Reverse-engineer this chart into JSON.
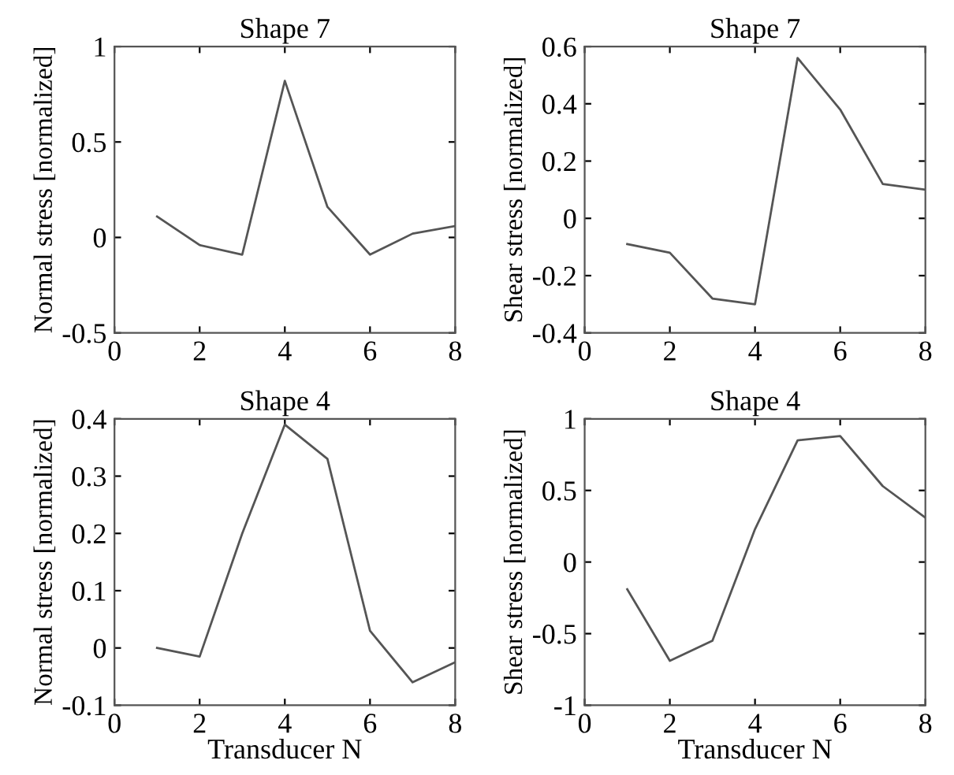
{
  "chart_data": [
    {
      "type": "line",
      "title": "Shape 7",
      "ylabel": "Normal stress [normalized]",
      "x": [
        1,
        2,
        3,
        4,
        5,
        6,
        7,
        8
      ],
      "values": [
        0.11,
        -0.04,
        -0.09,
        0.82,
        0.16,
        -0.09,
        0.02,
        0.06
      ],
      "color": "#555555",
      "xlim": [
        0,
        8
      ],
      "xticks": [
        0,
        2,
        4,
        6,
        8
      ],
      "ylim": [
        -0.5,
        1
      ],
      "yticks": [
        -0.5,
        0,
        0.5,
        1
      ],
      "grid": false
    },
    {
      "type": "line",
      "title": "Shape 7",
      "ylabel": "Shear stress [normalized]",
      "x": [
        1,
        2,
        3,
        4,
        5,
        6,
        7,
        8
      ],
      "values": [
        -0.09,
        -0.12,
        -0.28,
        -0.3,
        0.56,
        0.38,
        0.12,
        0.1
      ],
      "color": "#555555",
      "xlim": [
        0,
        8
      ],
      "xticks": [
        0,
        2,
        4,
        6,
        8
      ],
      "ylim": [
        -0.4,
        0.6
      ],
      "yticks": [
        -0.4,
        -0.2,
        0,
        0.2,
        0.4,
        0.6
      ],
      "grid": false
    },
    {
      "type": "line",
      "title": "Shape 4",
      "xlabel": "Transducer N",
      "ylabel": "Normal stress [normalized]",
      "x": [
        1,
        2,
        3,
        4,
        5,
        6,
        7,
        8
      ],
      "values": [
        0.0,
        -0.015,
        0.2,
        0.39,
        0.33,
        0.03,
        -0.06,
        -0.025
      ],
      "color": "#555555",
      "xlim": [
        0,
        8
      ],
      "xticks": [
        0,
        2,
        4,
        6,
        8
      ],
      "ylim": [
        -0.1,
        0.4
      ],
      "yticks": [
        -0.1,
        0,
        0.1,
        0.2,
        0.3,
        0.4
      ],
      "grid": false
    },
    {
      "type": "line",
      "title": "Shape 4",
      "xlabel": "Transducer N",
      "ylabel": "Shear stress [normalized]",
      "x": [
        1,
        2,
        3,
        4,
        5,
        6,
        7,
        8
      ],
      "values": [
        -0.19,
        -0.69,
        -0.55,
        0.23,
        0.85,
        0.88,
        0.53,
        0.31
      ],
      "color": "#555555",
      "xlim": [
        0,
        8
      ],
      "xticks": [
        0,
        2,
        4,
        6,
        8
      ],
      "ylim": [
        -1,
        1
      ],
      "yticks": [
        -1,
        -0.5,
        0,
        0.5,
        1
      ],
      "grid": false
    }
  ]
}
